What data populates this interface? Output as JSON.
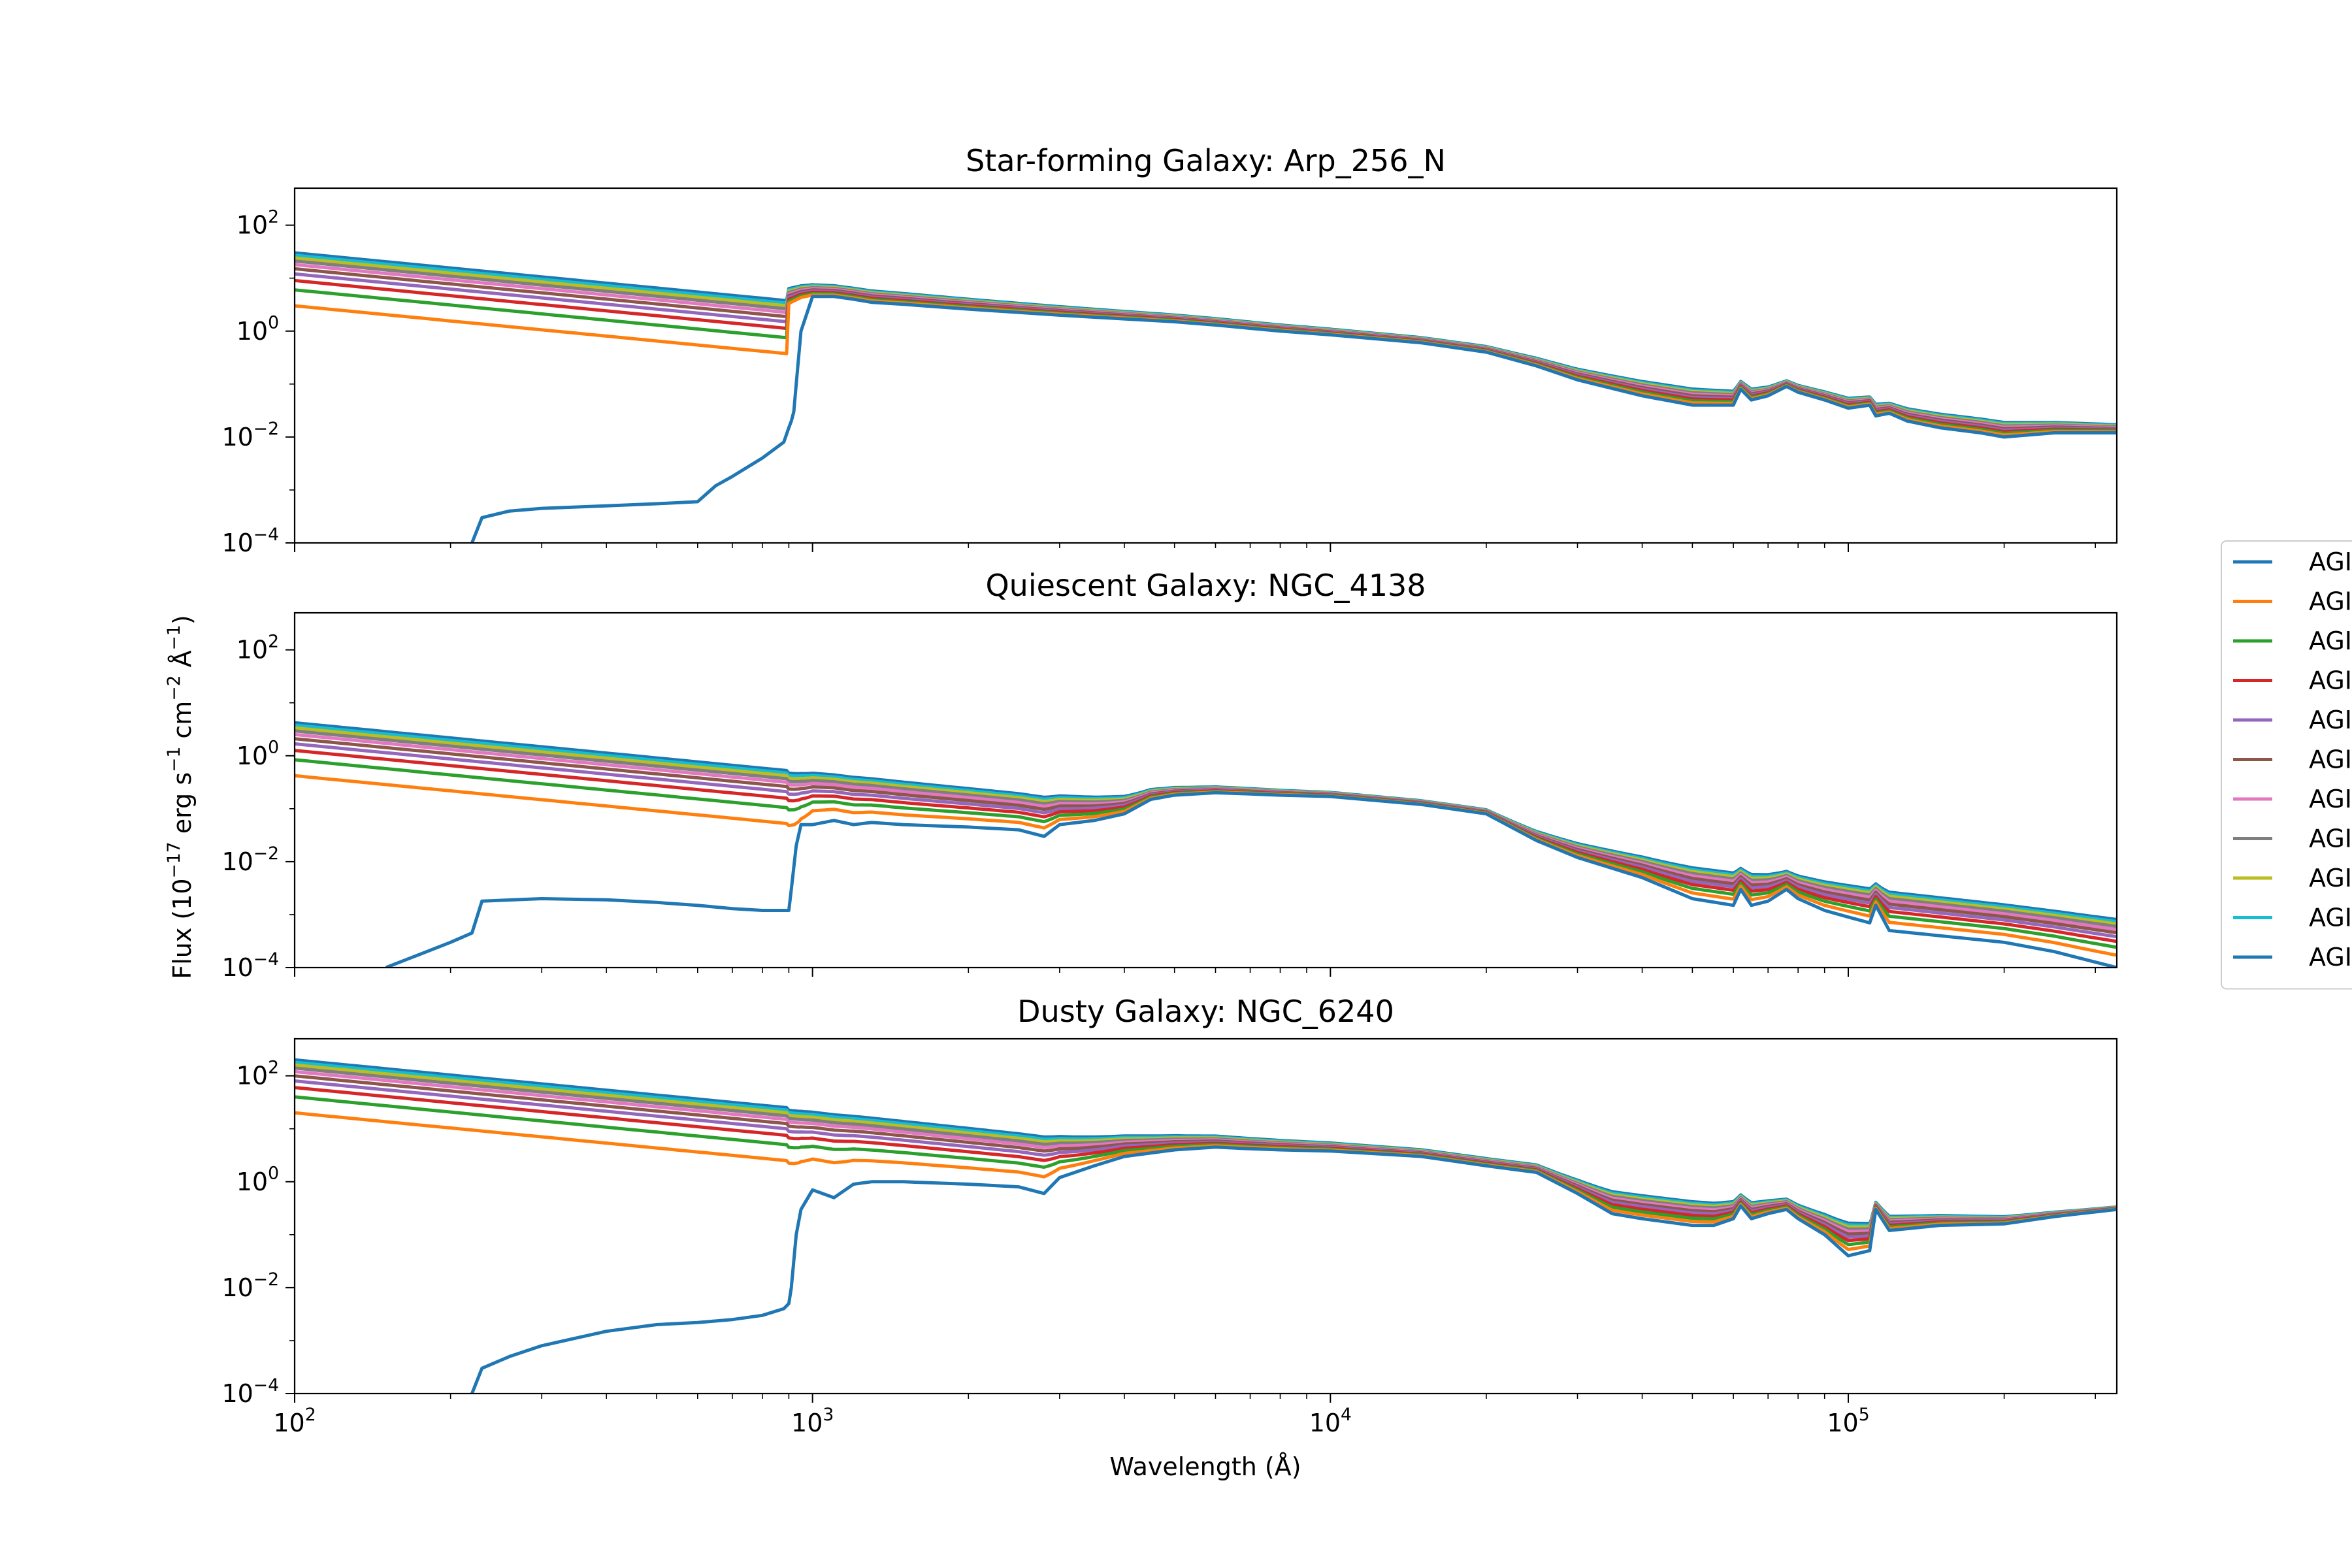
{
  "figure": {
    "ylabel": "Flux (10$^{-17}$ erg s$^{-1}$ cm$^{-2}$ $\\AA^{-1}$)",
    "xlabel": "Wavelength ($\\AA$)"
  },
  "legend": {
    "placement": "center-right, clipped at right edge",
    "entries": [
      "AGI",
      "AGI",
      "AGI",
      "AGI",
      "AGI",
      "AGI",
      "AGI",
      "AGI",
      "AGI",
      "AGI",
      "AGI"
    ]
  },
  "colors": [
    "#1f77b4",
    "#ff7f0e",
    "#2ca02c",
    "#d62728",
    "#9467bd",
    "#8c564b",
    "#e377c2",
    "#7f7f7f",
    "#bcbd22",
    "#17becf",
    "#1f77b4"
  ],
  "chart_data": [
    {
      "type": "line",
      "title": "Star-forming Galaxy: Arp_256_N",
      "xlabel": "",
      "ylabel": "",
      "xscale": "log",
      "yscale": "log",
      "xlim": [
        100,
        330000
      ],
      "ylim": [
        0.0001,
        500
      ],
      "xticks": [
        100,
        1000,
        10000,
        100000
      ],
      "xtick_labels": [
        "10^2",
        "10^3",
        "10^4",
        "10^5"
      ],
      "xtick_labels_visible": false,
      "yticks": [
        0.0001,
        0.01,
        1,
        100
      ],
      "ytick_labels": [
        "10^-4",
        "10^-2",
        "10^0",
        "10^2"
      ],
      "grid": false,
      "base_continuum": {
        "x": [
          900,
          950,
          1000,
          1100,
          1200,
          1300,
          1500,
          2000,
          3000,
          4000,
          5000,
          6000,
          8000,
          10000,
          15000,
          20000,
          25000,
          30000,
          40000,
          50000,
          60000,
          62000,
          65000,
          70000,
          76000,
          80000,
          90000,
          100000,
          110000,
          113000,
          120000,
          130000,
          150000,
          180000,
          200000,
          250000,
          330000
        ],
        "y": [
          3.0,
          4.0,
          4.5,
          4.5,
          4.0,
          3.5,
          3.2,
          2.6,
          2.0,
          1.7,
          1.5,
          1.3,
          1.0,
          0.85,
          0.6,
          0.4,
          0.22,
          0.12,
          0.06,
          0.04,
          0.04,
          0.08,
          0.05,
          0.06,
          0.09,
          0.07,
          0.05,
          0.035,
          0.04,
          0.025,
          0.028,
          0.02,
          0.015,
          0.012,
          0.01,
          0.012,
          0.012
        ]
      },
      "series": [
        {
          "name": "AGI",
          "agn_flux_at_100": 0,
          "lowest_curve": {
            "x": [
              220,
              230,
              260,
              300,
              400,
              500,
              600,
              650,
              700,
              800,
              880,
              900,
              910,
              920,
              930,
              950
            ],
            "y": [
              0.0001,
              0.0003,
              0.0004,
              0.00045,
              0.0005,
              0.00055,
              0.0006,
              0.0012,
              0.0018,
              0.004,
              0.008,
              0.015,
              0.02,
              0.03,
              0.1,
              1.0
            ]
          }
        },
        {
          "name": "AGI",
          "agn_flux_at_100": 3.0
        },
        {
          "name": "AGI",
          "agn_flux_at_100": 6.0
        },
        {
          "name": "AGI",
          "agn_flux_at_100": 9.0
        },
        {
          "name": "AGI",
          "agn_flux_at_100": 12.0
        },
        {
          "name": "AGI",
          "agn_flux_at_100": 15.0
        },
        {
          "name": "AGI",
          "agn_flux_at_100": 18.0
        },
        {
          "name": "AGI",
          "agn_flux_at_100": 21.0
        },
        {
          "name": "AGI",
          "agn_flux_at_100": 24.0
        },
        {
          "name": "AGI",
          "agn_flux_at_100": 27.0
        },
        {
          "name": "AGI",
          "agn_flux_at_100": 30.0
        }
      ],
      "agn_powerlaw_slope": -0.95,
      "agn_at_900_fraction": 0.125
    },
    {
      "type": "line",
      "title": "Quiescent Galaxy: NGC_4138",
      "xlabel": "",
      "ylabel": "",
      "xscale": "log",
      "yscale": "log",
      "xlim": [
        100,
        330000
      ],
      "ylim": [
        0.0001,
        500
      ],
      "xticks": [
        100,
        1000,
        10000,
        100000
      ],
      "xtick_labels": [
        "10^2",
        "10^3",
        "10^4",
        "10^5"
      ],
      "xtick_labels_visible": false,
      "yticks": [
        0.0001,
        0.01,
        1,
        100
      ],
      "ytick_labels": [
        "10^-4",
        "10^-2",
        "10^0",
        "10^2"
      ],
      "grid": false,
      "base_continuum": {
        "x": [
          900,
          950,
          1000,
          1100,
          1200,
          1300,
          1500,
          2000,
          2500,
          2800,
          3000,
          3500,
          4000,
          4500,
          5000,
          6000,
          7000,
          8000,
          10000,
          15000,
          20000,
          25000,
          30000,
          40000,
          50000,
          60000,
          62000,
          65000,
          70000,
          76000,
          80000,
          90000,
          100000,
          110000,
          113000,
          120000,
          150000,
          200000,
          250000,
          330000
        ],
        "y": [
          0.0012,
          0.02,
          0.05,
          0.06,
          0.05,
          0.055,
          0.05,
          0.045,
          0.04,
          0.03,
          0.05,
          0.06,
          0.08,
          0.15,
          0.18,
          0.2,
          0.19,
          0.18,
          0.17,
          0.12,
          0.08,
          0.025,
          0.012,
          0.005,
          0.002,
          0.0015,
          0.003,
          0.0015,
          0.0018,
          0.003,
          0.002,
          0.0012,
          0.0009,
          0.0007,
          0.0015,
          0.0005,
          0.0004,
          0.0003,
          0.0002,
          0.0001
        ]
      },
      "series": [
        {
          "name": "AGI",
          "agn_flux_at_100": 0,
          "lowest_curve": {
            "x": [
              150,
              200,
              220,
              230,
              300,
              400,
              500,
              600,
              700,
              800,
              900,
              910,
              930,
              950
            ],
            "y": [
              0.0001,
              0.0003,
              0.00045,
              0.0018,
              0.002,
              0.0019,
              0.0017,
              0.0015,
              0.0013,
              0.0012,
              0.0012,
              0.003,
              0.02,
              0.05
            ]
          }
        },
        {
          "name": "AGI",
          "agn_flux_at_100": 0.42
        },
        {
          "name": "AGI",
          "agn_flux_at_100": 0.84
        },
        {
          "name": "AGI",
          "agn_flux_at_100": 1.26
        },
        {
          "name": "AGI",
          "agn_flux_at_100": 1.68
        },
        {
          "name": "AGI",
          "agn_flux_at_100": 2.1
        },
        {
          "name": "AGI",
          "agn_flux_at_100": 2.52
        },
        {
          "name": "AGI",
          "agn_flux_at_100": 2.94
        },
        {
          "name": "AGI",
          "agn_flux_at_100": 3.36
        },
        {
          "name": "AGI",
          "agn_flux_at_100": 3.78
        },
        {
          "name": "AGI",
          "agn_flux_at_100": 4.2
        }
      ],
      "agn_powerlaw_slope": -0.95,
      "agn_at_900_fraction": 0.125
    },
    {
      "type": "line",
      "title": "Dusty Galaxy: NGC_6240",
      "xlabel": "Wavelength ($\\AA$)",
      "ylabel": "",
      "xscale": "log",
      "yscale": "log",
      "xlim": [
        100,
        330000
      ],
      "ylim": [
        0.0001,
        500
      ],
      "xticks": [
        100,
        1000,
        10000,
        100000
      ],
      "xtick_labels": [
        "10^2",
        "10^3",
        "10^4",
        "10^5"
      ],
      "xtick_labels_visible": true,
      "yticks": [
        0.0001,
        0.01,
        1,
        100
      ],
      "ytick_labels": [
        "10^-4",
        "10^-2",
        "10^0",
        "10^2"
      ],
      "grid": false,
      "base_continuum": {
        "x": [
          900,
          950,
          1000,
          1100,
          1200,
          1300,
          1500,
          2000,
          2500,
          2800,
          3000,
          3500,
          4000,
          5000,
          6000,
          7000,
          8000,
          10000,
          15000,
          20000,
          25000,
          30000,
          35000,
          40000,
          50000,
          55000,
          60000,
          62000,
          65000,
          70000,
          76000,
          80000,
          90000,
          100000,
          110000,
          113000,
          120000,
          150000,
          200000,
          250000,
          330000
        ],
        "y": [
          0.005,
          0.3,
          0.7,
          0.5,
          0.9,
          1.0,
          1.0,
          0.9,
          0.8,
          0.6,
          1.2,
          2.0,
          3.0,
          4.0,
          4.5,
          4.2,
          4.0,
          3.8,
          3.0,
          2.0,
          1.5,
          0.6,
          0.25,
          0.2,
          0.15,
          0.15,
          0.2,
          0.35,
          0.2,
          0.25,
          0.3,
          0.2,
          0.1,
          0.04,
          0.05,
          0.3,
          0.12,
          0.15,
          0.16,
          0.22,
          0.3
        ]
      },
      "series": [
        {
          "name": "AGI",
          "agn_flux_at_100": 0,
          "lowest_curve": {
            "x": [
              220,
              230,
              260,
              300,
              400,
              500,
              600,
              700,
              800,
              880,
              900,
              910,
              930,
              950
            ],
            "y": [
              0.0001,
              0.0003,
              0.0005,
              0.0008,
              0.0015,
              0.002,
              0.0022,
              0.0025,
              0.003,
              0.004,
              0.005,
              0.01,
              0.1,
              0.3
            ]
          }
        },
        {
          "name": "AGI",
          "agn_flux_at_100": 20
        },
        {
          "name": "AGI",
          "agn_flux_at_100": 40
        },
        {
          "name": "AGI",
          "agn_flux_at_100": 60
        },
        {
          "name": "AGI",
          "agn_flux_at_100": 80
        },
        {
          "name": "AGI",
          "agn_flux_at_100": 100
        },
        {
          "name": "AGI",
          "agn_flux_at_100": 120
        },
        {
          "name": "AGI",
          "agn_flux_at_100": 140
        },
        {
          "name": "AGI",
          "agn_flux_at_100": 160
        },
        {
          "name": "AGI",
          "agn_flux_at_100": 180
        },
        {
          "name": "AGI",
          "agn_flux_at_100": 200
        }
      ],
      "agn_powerlaw_slope": -0.95,
      "agn_at_900_fraction": 0.125
    }
  ]
}
